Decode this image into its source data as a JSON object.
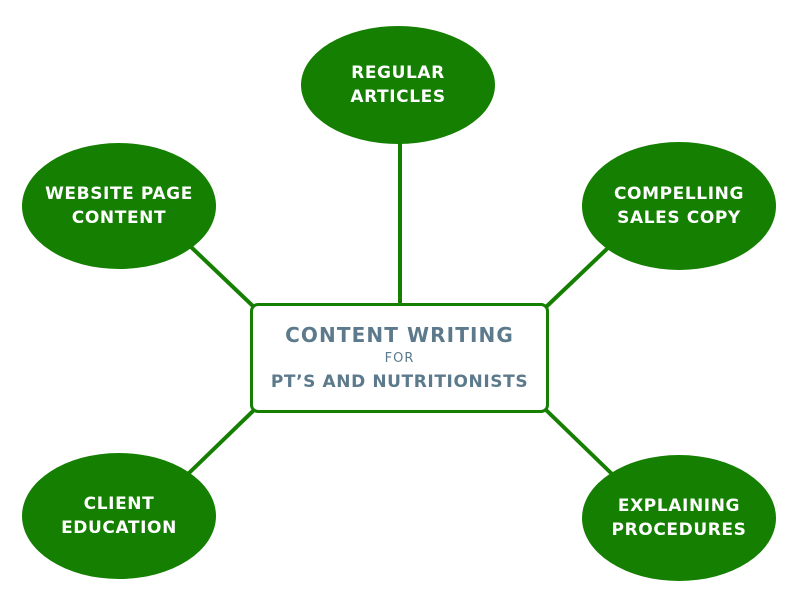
{
  "center": {
    "title": "CONTENT WRITING",
    "connector_word": "FOR",
    "subtitle": "PT’S AND NUTRITIONISTS"
  },
  "nodes": {
    "regular_articles": {
      "line1": "REGULAR",
      "line2": "ARTICLES"
    },
    "website_page_content": {
      "line1": "WEBSITE PAGE",
      "line2": "CONTENT"
    },
    "compelling_sales_copy": {
      "line1": "COMPELLING",
      "line2": "SALES COPY"
    },
    "client_education": {
      "line1": "CLIENT",
      "line2": "EDUCATION"
    },
    "explaining_procedures": {
      "line1": "EXPLAINING",
      "line2": "PROCEDURES"
    }
  },
  "colors": {
    "node_fill": "#147F00",
    "node_text": "#FFFFFF",
    "connector": "#147F00",
    "center_border": "#147F00",
    "center_text": "#5C7A8C",
    "background": "#FFFFFF"
  }
}
